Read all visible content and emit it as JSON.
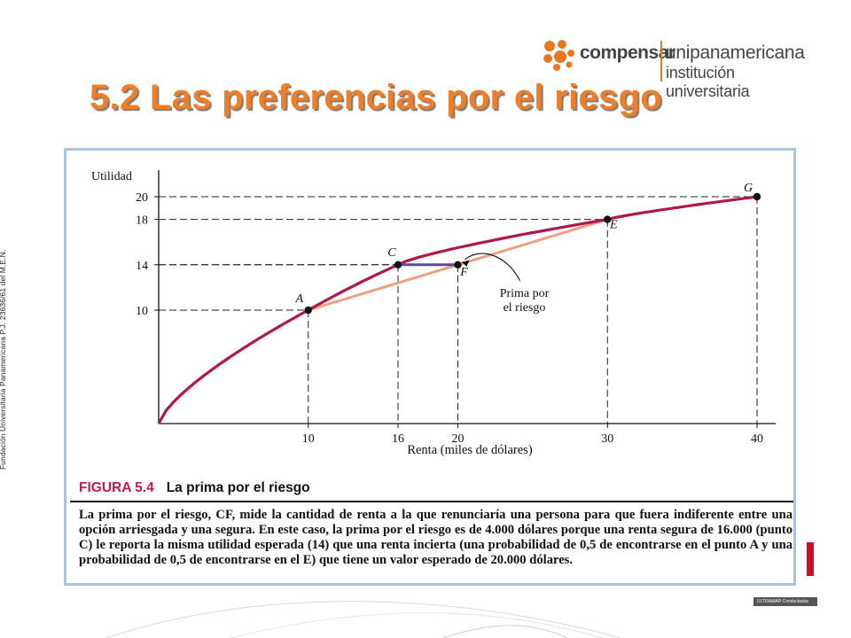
{
  "side_text": "Fundación Universitaria Panamericana P.J. 23636/61 del M.E.N.",
  "logo": {
    "brand": "compensar",
    "name": "unipanamericana",
    "subtitle": "institución universitaria"
  },
  "title": "5.2 Las preferencias por el riesgo",
  "figure": {
    "label": "FIGURA 5.4",
    "caption_title": "La prima por el riesgo",
    "caption_text": "La prima por el riesgo, CF, mide la cantidad de renta a la que renunciaría una persona para que fuera indiferente entre una opción arriesgada y una segura. En este caso, la prima por el riesgo es de 4.000 dólares porque una renta segura de 16.000 (punto C) le reporta la misma utilidad esperada (14) que una renta incierta (una probabilidad de 0,5 de encontrarse en el punto A y una probabilidad de 0,5 de encontrarse en el E) que tiene un valor esperado de 20.000 dólares."
  },
  "chart_data": {
    "type": "line",
    "ylabel": "Utilidad",
    "xlabel": "Renta (miles de dólares)",
    "xlim": [
      0,
      41
    ],
    "ylim": [
      0,
      21
    ],
    "x_ticks": [
      "10",
      "16",
      "20",
      "30",
      "40"
    ],
    "y_ticks": [
      "10",
      "14",
      "18",
      "20"
    ],
    "series": [
      {
        "x": [
          0,
          2,
          4,
          6,
          8,
          10,
          12,
          14,
          16,
          18,
          20,
          22,
          24,
          26,
          28,
          30,
          32,
          34,
          36,
          38,
          40
        ],
        "y": [
          0,
          3.0,
          5.4,
          7.2,
          8.7,
          10,
          11.2,
          12.3,
          14,
          14.8,
          15.5,
          16.1,
          16.7,
          17.2,
          17.6,
          18,
          18.5,
          18.9,
          19.3,
          19.7,
          20
        ]
      },
      {
        "x": [
          10,
          30
        ],
        "y": [
          10,
          18
        ]
      }
    ],
    "points": [
      {
        "label": "A",
        "x": 10,
        "y": 10
      },
      {
        "label": "C",
        "x": 16,
        "y": 14
      },
      {
        "label": "F",
        "x": 20,
        "y": 14
      },
      {
        "label": "E",
        "x": 30,
        "y": 18
      },
      {
        "label": "G",
        "x": 40,
        "y": 20
      }
    ],
    "annotation": [
      "Prima por",
      "el riesgo"
    ],
    "colors": {
      "utility_curve": "#b0174a",
      "chord": "#f0a080",
      "premium_segment": "#5b4a9e"
    }
  },
  "footer": {
    "badge_text": "ULTRAMAR Conductados"
  }
}
